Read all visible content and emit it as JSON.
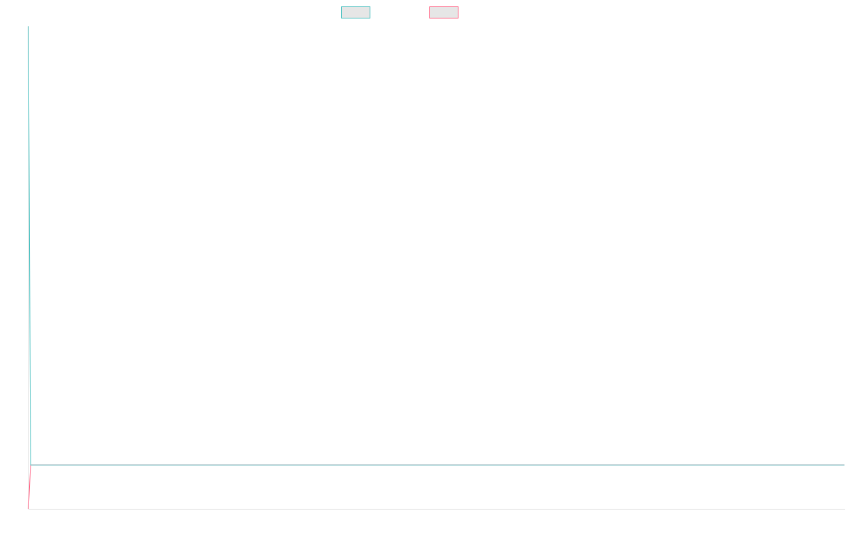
{
  "chart_data": {
    "type": "line",
    "title": "",
    "xlabel": "",
    "ylabel": "",
    "xlim": [
      0,
      383
    ],
    "ylim": [
      -0.1,
      1.0
    ],
    "grid": false,
    "legend": "top",
    "legend_swatch_fill": "#e6e6e6",
    "series": [
      {
        "color": "#4bc0c0",
        "points": [
          [
            0,
            1.0
          ],
          [
            1,
            0
          ],
          [
            383,
            0
          ]
        ]
      },
      {
        "color": "#ff6384",
        "points": [
          [
            0,
            -0.1
          ],
          [
            1,
            0
          ],
          [
            383,
            0
          ]
        ]
      }
    ]
  }
}
